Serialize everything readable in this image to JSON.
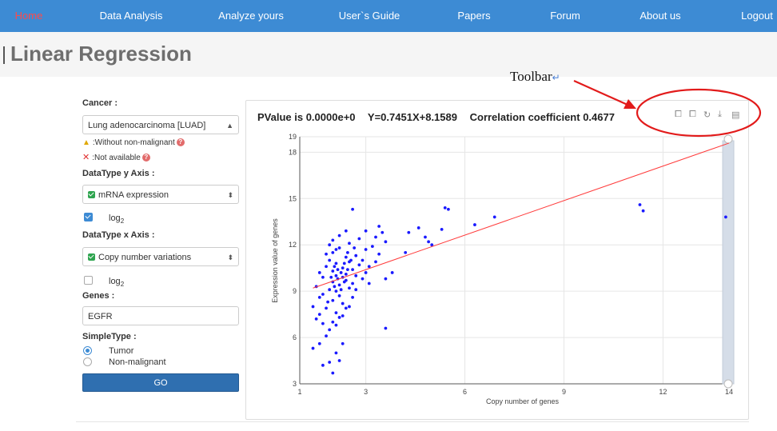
{
  "nav": {
    "items": [
      {
        "label": "Home",
        "active": true
      },
      {
        "label": "Data Analysis"
      },
      {
        "label": "Analyze yours"
      },
      {
        "label": "User`s Guide"
      },
      {
        "label": "Papers"
      },
      {
        "label": "Forum"
      },
      {
        "label": "About us"
      },
      {
        "label": "Logout"
      }
    ]
  },
  "page_title": "Linear Regression",
  "form": {
    "cancer_label": "Cancer :",
    "cancer_value": "Lung adenocarcinoma [LUAD]",
    "note_without": ":Without non-malignant",
    "note_not_available": ":Not available",
    "datatype_y_label": "DataType y Axis :",
    "datatype_y_value": "mRNA expression",
    "log_y_label": "log",
    "log_y_sub": "2",
    "log_y_checked": true,
    "datatype_x_label": "DataType x Axis :",
    "datatype_x_value": "Copy number variations",
    "log_x_label": "log",
    "log_x_sub": "2",
    "log_x_checked": false,
    "genes_label": "Genes :",
    "genes_value": "EGFR",
    "sampletype_label": "SimpleType :",
    "sample_options": [
      "Tumor",
      "Non-malignant"
    ],
    "sample_selected": "Tumor",
    "go_label": "GO"
  },
  "stats": {
    "pvalue": "PValue is  0.0000e+0",
    "equation": "Y=0.7451X+8.1589",
    "correlation": "Correlation coefficient  0.4677"
  },
  "annotation": {
    "toolbar_label": "Toolbar",
    "return_glyph": "↵"
  },
  "toolbar_icons": [
    "zoom-icon",
    "zoom-reset-icon",
    "refresh-icon",
    "download-icon",
    "data-view-icon"
  ],
  "colors": {
    "nav_bg": "#3d8bd4",
    "nav_active": "#ff4a4a",
    "go_button": "#2f6fb0",
    "points": "#1a1aff",
    "regression_line": "#ff3b3b",
    "annotation": "#e21b1b"
  },
  "chart_data": {
    "type": "scatter",
    "xlabel": "Copy number of genes",
    "ylabel": "Expression value of genes",
    "xlim": [
      1,
      14
    ],
    "ylim": [
      3,
      19
    ],
    "x_ticks": [
      "1",
      "3",
      "6",
      "9",
      "12",
      "14"
    ],
    "y_ticks": [
      "3",
      "6",
      "9",
      "12",
      "15",
      "18",
      "19"
    ],
    "regression": {
      "slope": 0.7451,
      "intercept": 8.1589
    },
    "points": [
      [
        1.4,
        5.3
      ],
      [
        1.6,
        5.6
      ],
      [
        1.7,
        4.2
      ],
      [
        1.9,
        4.4
      ],
      [
        2.0,
        3.7
      ],
      [
        2.1,
        5.0
      ],
      [
        2.2,
        4.5
      ],
      [
        1.8,
        6.1
      ],
      [
        2.3,
        5.6
      ],
      [
        2.6,
        14.3
      ],
      [
        3.6,
        6.6
      ],
      [
        3.4,
        13.2
      ],
      [
        3.0,
        12.9
      ],
      [
        3.5,
        12.8
      ],
      [
        3.6,
        12.2
      ],
      [
        3.6,
        9.8
      ],
      [
        3.8,
        10.2
      ],
      [
        4.2,
        11.5
      ],
      [
        4.3,
        12.8
      ],
      [
        4.6,
        13.1
      ],
      [
        4.8,
        12.5
      ],
      [
        4.9,
        12.2
      ],
      [
        5.0,
        12.0
      ],
      [
        5.3,
        13.0
      ],
      [
        5.4,
        14.4
      ],
      [
        5.5,
        14.3
      ],
      [
        6.3,
        13.3
      ],
      [
        6.9,
        13.8
      ],
      [
        11.3,
        14.6
      ],
      [
        11.4,
        14.2
      ],
      [
        13.9,
        13.8
      ],
      [
        1.4,
        8.0
      ],
      [
        1.5,
        9.3
      ],
      [
        1.6,
        10.2
      ],
      [
        1.6,
        7.5
      ],
      [
        1.7,
        8.8
      ],
      [
        1.7,
        9.9
      ],
      [
        1.8,
        10.6
      ],
      [
        1.8,
        7.9
      ],
      [
        1.9,
        9.1
      ],
      [
        1.9,
        11.0
      ],
      [
        2.0,
        8.4
      ],
      [
        2.0,
        9.6
      ],
      [
        2.0,
        10.3
      ],
      [
        2.0,
        11.5
      ],
      [
        2.1,
        7.6
      ],
      [
        2.1,
        9.0
      ],
      [
        2.1,
        10.0
      ],
      [
        2.1,
        10.8
      ],
      [
        2.2,
        8.7
      ],
      [
        2.2,
        9.4
      ],
      [
        2.2,
        11.8
      ],
      [
        2.3,
        9.9
      ],
      [
        2.3,
        10.5
      ],
      [
        2.3,
        8.2
      ],
      [
        2.4,
        9.7
      ],
      [
        2.4,
        11.2
      ],
      [
        2.4,
        10.1
      ],
      [
        2.5,
        9.2
      ],
      [
        2.5,
        10.9
      ],
      [
        2.5,
        12.1
      ],
      [
        2.6,
        10.4
      ],
      [
        2.6,
        9.5
      ],
      [
        2.7,
        11.3
      ],
      [
        2.7,
        10.0
      ],
      [
        2.8,
        10.7
      ],
      [
        2.8,
        12.4
      ],
      [
        2.9,
        11.0
      ],
      [
        3.0,
        10.2
      ],
      [
        3.0,
        11.7
      ],
      [
        3.1,
        10.6
      ],
      [
        3.2,
        11.9
      ],
      [
        3.3,
        10.9
      ],
      [
        3.3,
        12.5
      ],
      [
        1.9,
        6.5
      ],
      [
        2.0,
        7.0
      ],
      [
        2.1,
        6.8
      ],
      [
        2.2,
        7.3
      ],
      [
        1.7,
        6.9
      ],
      [
        2.4,
        7.9
      ],
      [
        2.6,
        8.6
      ],
      [
        1.8,
        11.4
      ],
      [
        1.9,
        12.0
      ],
      [
        2.0,
        12.3
      ],
      [
        2.2,
        12.6
      ],
      [
        2.4,
        12.9
      ],
      [
        2.1,
        11.7
      ],
      [
        1.6,
        8.6
      ],
      [
        1.5,
        7.2
      ],
      [
        2.3,
        7.4
      ],
      [
        2.5,
        8.0
      ],
      [
        2.7,
        9.1
      ],
      [
        2.9,
        9.8
      ],
      [
        3.1,
        9.5
      ],
      [
        3.4,
        11.4
      ],
      [
        2.05,
        9.3
      ],
      [
        2.15,
        9.8
      ],
      [
        2.25,
        10.2
      ],
      [
        1.95,
        9.9
      ],
      [
        2.35,
        9.6
      ],
      [
        2.45,
        10.4
      ],
      [
        2.55,
        11.0
      ],
      [
        1.85,
        8.3
      ],
      [
        2.05,
        10.6
      ],
      [
        2.15,
        10.4
      ],
      [
        2.25,
        9.1
      ],
      [
        2.35,
        10.8
      ],
      [
        2.45,
        11.5
      ],
      [
        2.65,
        11.8
      ]
    ]
  }
}
